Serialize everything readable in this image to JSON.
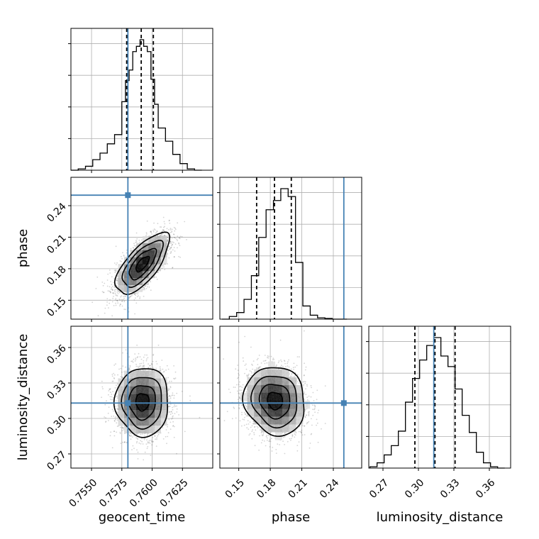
{
  "chart_data": {
    "type": "corner",
    "parameters": [
      "geocent_time",
      "phase",
      "luminosity_distance"
    ],
    "truths": {
      "geocent_time": 0.758,
      "phase": 0.25,
      "luminosity_distance": 0.313
    },
    "colors": {
      "truth": "#4682b4",
      "hist": "#000000",
      "grid": "#b0b0b0",
      "points": "#555555"
    },
    "panels": [
      {
        "id": "hist-geocent_time",
        "type": "histogram",
        "param": "geocent_time",
        "xlim": [
          0.7533,
          0.765
        ],
        "xticks": [
          0.755,
          0.7575,
          0.76,
          0.7625
        ],
        "xtick_labels": [
          "0.7550",
          "0.7575",
          "0.7600",
          "0.7625"
        ],
        "quantiles": [
          0.7579,
          0.7591,
          0.7601
        ],
        "truth": 0.758,
        "bin_edges": [
          0.7533,
          0.7539,
          0.7545,
          0.7551,
          0.7557,
          0.7563,
          0.7569,
          0.7575,
          0.7578,
          0.7581,
          0.7584,
          0.7587,
          0.759,
          0.7593,
          0.7596,
          0.7599,
          0.7602,
          0.7605,
          0.7611,
          0.7617,
          0.7623,
          0.7629,
          0.7635,
          0.7641
        ],
        "counts": [
          0,
          0.01,
          0.03,
          0.08,
          0.13,
          0.2,
          0.27,
          0.52,
          0.68,
          0.76,
          0.9,
          0.94,
          0.99,
          0.94,
          0.9,
          0.69,
          0.5,
          0.32,
          0.22,
          0.12,
          0.05,
          0.01,
          0
        ]
      },
      {
        "id": "hist-phase",
        "type": "histogram",
        "param": "phase",
        "xlim": [
          0.132,
          0.267
        ],
        "xticks": [
          0.15,
          0.18,
          0.21,
          0.24
        ],
        "xtick_labels": [
          "0.15",
          "0.18",
          "0.21",
          "0.24"
        ],
        "quantiles": [
          0.167,
          0.184,
          0.2
        ],
        "truth": 0.25,
        "bin_edges": [
          0.134,
          0.141,
          0.148,
          0.155,
          0.162,
          0.169,
          0.176,
          0.183,
          0.19,
          0.197,
          0.204,
          0.211,
          0.218,
          0.225,
          0.232,
          0.239,
          0.246,
          0.253
        ],
        "counts": [
          0,
          0.02,
          0.05,
          0.15,
          0.33,
          0.62,
          0.83,
          0.9,
          0.99,
          0.93,
          0.43,
          0.1,
          0.03,
          0.01,
          0.005,
          0,
          0
        ]
      },
      {
        "id": "hist-luminosity_distance",
        "type": "histogram",
        "param": "luminosity_distance",
        "xlim": [
          0.258,
          0.378
        ],
        "xticks": [
          0.27,
          0.3,
          0.33,
          0.36
        ],
        "xtick_labels": [
          "0.27",
          "0.30",
          "0.33",
          "0.36"
        ],
        "quantiles": [
          0.297,
          0.314,
          0.331
        ],
        "truth": 0.313,
        "bin_edges": [
          0.259,
          0.265,
          0.271,
          0.277,
          0.283,
          0.289,
          0.295,
          0.301,
          0.307,
          0.313,
          0.319,
          0.325,
          0.331,
          0.337,
          0.343,
          0.349,
          0.355,
          0.361,
          0.367,
          0.373
        ],
        "counts": [
          0.01,
          0.04,
          0.1,
          0.17,
          0.28,
          0.5,
          0.68,
          0.82,
          0.93,
          0.99,
          0.85,
          0.77,
          0.6,
          0.4,
          0.27,
          0.12,
          0.04,
          0.01,
          0
        ]
      },
      {
        "id": "scatter-geocent_time-phase",
        "type": "density2d",
        "x_param": "geocent_time",
        "y_param": "phase",
        "xlim": [
          0.7533,
          0.765
        ],
        "ylim": [
          0.132,
          0.267
        ],
        "yticks": [
          0.15,
          0.18,
          0.21,
          0.24
        ],
        "ytick_labels": [
          "0.15",
          "0.18",
          "0.21",
          "0.24"
        ],
        "truth": [
          0.758,
          0.25
        ],
        "center": [
          0.7592,
          0.1845
        ],
        "sigma": [
          0.0011,
          0.0145
        ],
        "correlation": 0.7
      },
      {
        "id": "scatter-geocent_time-luminosity_distance",
        "type": "density2d",
        "x_param": "geocent_time",
        "y_param": "luminosity_distance",
        "xlim": [
          0.7533,
          0.765
        ],
        "ylim": [
          0.258,
          0.378
        ],
        "yticks": [
          0.27,
          0.3,
          0.33,
          0.36
        ],
        "ytick_labels": [
          "0.27",
          "0.30",
          "0.33",
          "0.36"
        ],
        "xticks": [
          0.755,
          0.7575,
          0.76,
          0.7625
        ],
        "xtick_labels": [
          "0.7550",
          "0.7575",
          "0.7600",
          "0.7625"
        ],
        "truth": [
          0.758,
          0.313
        ],
        "center": [
          0.7592,
          0.314
        ],
        "sigma": [
          0.0011,
          0.0145
        ],
        "correlation": 0.0
      },
      {
        "id": "scatter-phase-luminosity_distance",
        "type": "density2d",
        "x_param": "phase",
        "y_param": "luminosity_distance",
        "xlim": [
          0.132,
          0.267
        ],
        "ylim": [
          0.258,
          0.378
        ],
        "xticks": [
          0.15,
          0.18,
          0.21,
          0.24
        ],
        "xtick_labels": [
          "0.15",
          "0.18",
          "0.21",
          "0.24"
        ],
        "truth": [
          0.25,
          0.313
        ],
        "center": [
          0.1845,
          0.315
        ],
        "sigma": [
          0.0145,
          0.0145
        ],
        "correlation": -0.1
      }
    ],
    "axis_labels": {
      "x_bottom": [
        "geocent_time",
        "phase",
        "luminosity_distance"
      ],
      "y_left": [
        "phase",
        "luminosity_distance"
      ]
    }
  }
}
